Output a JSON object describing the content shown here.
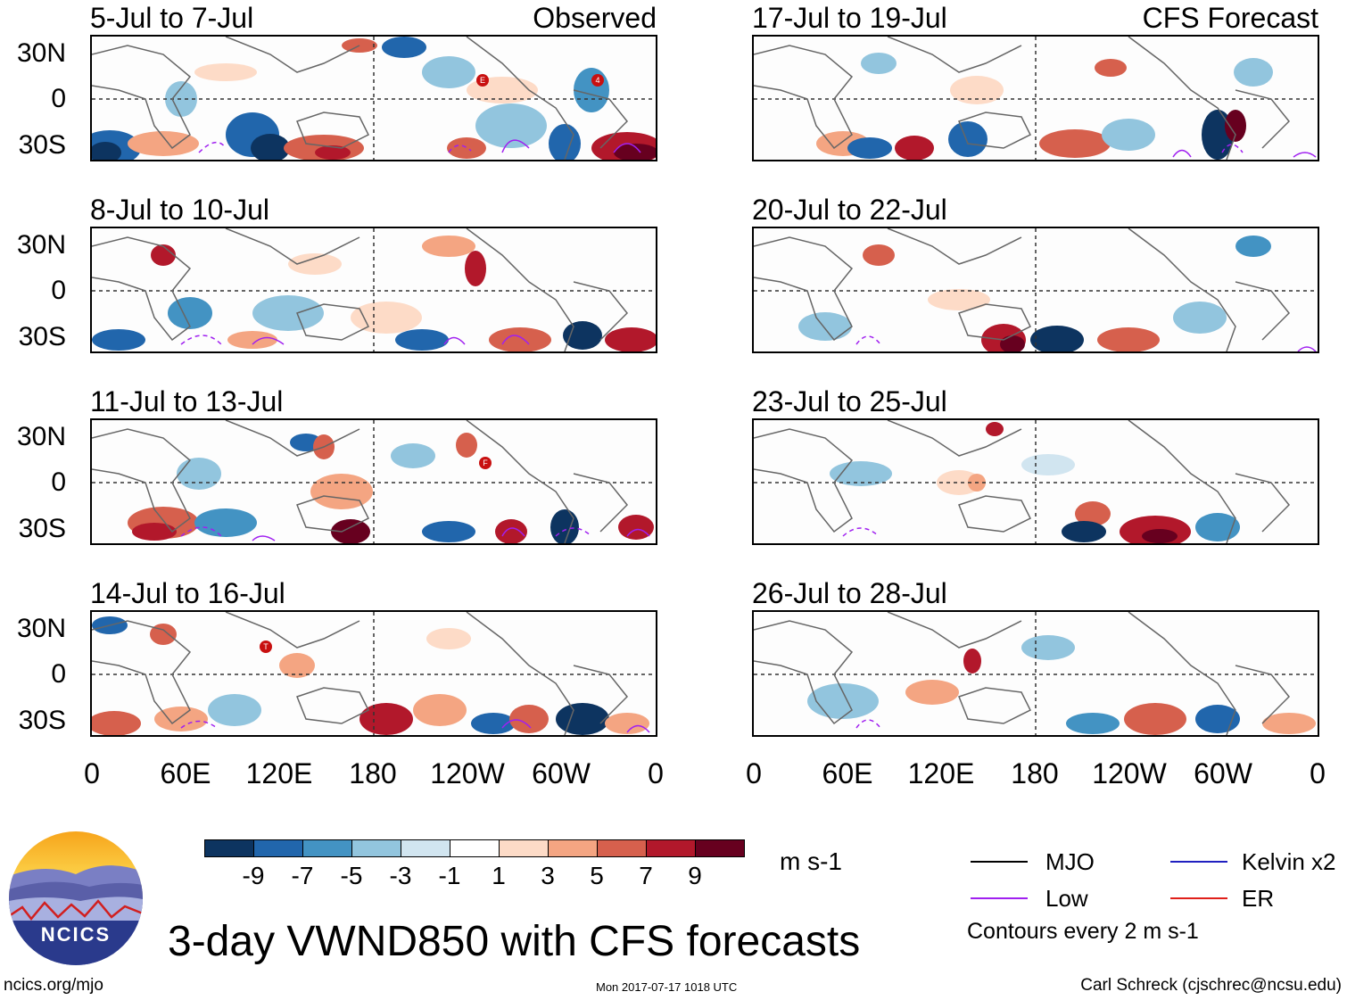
{
  "panels_left": [
    {
      "title": "5-Jul to 7-Jul",
      "label_right": "Observed"
    },
    {
      "title": "8-Jul to 10-Jul",
      "label_right": ""
    },
    {
      "title": "11-Jul to 13-Jul",
      "label_right": ""
    },
    {
      "title": "14-Jul to 16-Jul",
      "label_right": ""
    }
  ],
  "panels_right": [
    {
      "title": "17-Jul to 19-Jul",
      "label_right": "CFS Forecast"
    },
    {
      "title": "20-Jul to 22-Jul",
      "label_right": ""
    },
    {
      "title": "23-Jul to 25-Jul",
      "label_right": ""
    },
    {
      "title": "26-Jul to 28-Jul",
      "label_right": ""
    }
  ],
  "lat_labels": [
    "30N",
    "0",
    "30S"
  ],
  "lon_labels": [
    "0",
    "60E",
    "120E",
    "180",
    "120W",
    "60W",
    "0"
  ],
  "storm_markers": {
    "p0": [
      "E",
      "4"
    ],
    "p2": [
      "F"
    ],
    "p3": [
      "T"
    ]
  },
  "colorbar": {
    "colors": [
      "#0d3460",
      "#2166ac",
      "#4393c3",
      "#92c5de",
      "#d1e5f0",
      "#ffffff",
      "#fddbc7",
      "#f4a582",
      "#d6604d",
      "#b2182b",
      "#67001f"
    ],
    "labels": [
      "-9",
      "-7",
      "-5",
      "-3",
      "-1",
      "1",
      "3",
      "5",
      "7",
      "9"
    ],
    "units": "m s-1"
  },
  "legend": [
    {
      "name": "MJO",
      "color": "#000000"
    },
    {
      "name": "Kelvin x2",
      "color": "#2020c0"
    },
    {
      "name": "Low",
      "color": "#a020f0"
    },
    {
      "name": "ER",
      "color": "#e0201a"
    }
  ],
  "contour_note": "Contours every 2 m s-1",
  "main_title": "3-day VWND850 with CFS forecasts",
  "logo_text": "NCICS",
  "footer_url": "ncics.org/mjo",
  "timestamp": "Mon 2017-07-17 1018 UTC",
  "author": "Carl Schreck (cjschrec@ncsu.edu)"
}
